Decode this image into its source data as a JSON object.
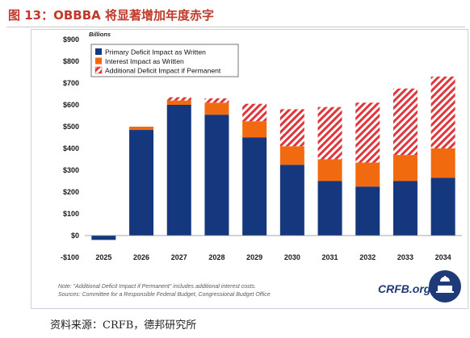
{
  "figure": {
    "title": "图 13：OBBBA 将显著增加年度赤字",
    "source": "资料来源：CRFB，德邦研究所"
  },
  "chart_data": {
    "type": "bar",
    "stacked": true,
    "units_label": "Billions",
    "categories": [
      "2025",
      "2026",
      "2027",
      "2028",
      "2029",
      "2030",
      "2031",
      "2032",
      "2033",
      "2034"
    ],
    "series": [
      {
        "name": "Primary Deficit Impact as Written",
        "color": "#14377d",
        "pattern": "solid",
        "values": [
          -20,
          485,
          600,
          555,
          450,
          325,
          250,
          225,
          250,
          265
        ]
      },
      {
        "name": "Interest Impact as Written",
        "color": "#f26a10",
        "pattern": "solid",
        "values": [
          0,
          15,
          20,
          55,
          75,
          85,
          100,
          110,
          120,
          135
        ]
      },
      {
        "name": "Additional Deficit Impact if Permanent",
        "color": "#e0353a",
        "pattern": "hatch",
        "values": [
          0,
          0,
          15,
          20,
          80,
          170,
          240,
          275,
          305,
          330
        ]
      }
    ],
    "ylim": [
      -100,
      900
    ],
    "yticks": [
      -100,
      0,
      100,
      200,
      300,
      400,
      500,
      600,
      700,
      800,
      900
    ],
    "ytick_labels": [
      "-$100",
      "$0",
      "$100",
      "$200",
      "$300",
      "$400",
      "$500",
      "$600",
      "$700",
      "$800",
      "$900"
    ],
    "grid": false,
    "legend_position": "top-left",
    "notes": [
      "Note: \"Additional Deficit Impact if Permanent\" includes additional interest costs.",
      "Sources: Committee for a Responsible Federal Budget, Congressional Budget Office"
    ],
    "logo_text": "CRFB.org"
  }
}
